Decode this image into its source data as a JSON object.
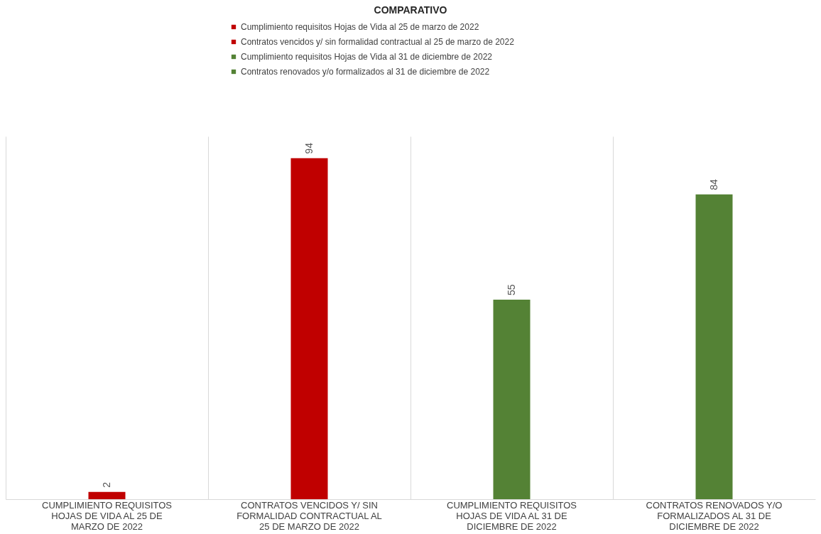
{
  "chart_data": {
    "type": "bar",
    "title": "COMPARATIVO",
    "categories": [
      "CUMPLIMIENTO REQUISITOS HOJAS DE VIDA AL 25 DE MARZO DE 2022",
      "CONTRATOS VENCIDOS Y/ SIN FORMALIDAD CONTRACTUAL AL 25 DE MARZO DE 2022",
      "CUMPLIMIENTO REQUISITOS HOJAS DE VIDA AL 31 DE DICIEMBRE DE 2022",
      "CONTRATOS RENOVADOS Y/O FORMALIZADOS AL 31 DE DICIEMBRE DE 2022"
    ],
    "series": [
      {
        "name": "Cumplimiento requisitos Hojas de Vida al 25 de marzo de 2022",
        "color": "#c00000",
        "values": [
          2,
          null,
          null,
          null
        ]
      },
      {
        "name": "Contratos vencidos y/ sin formalidad contractual al 25 de marzo de 2022",
        "color": "#c00000",
        "values": [
          null,
          94,
          null,
          null
        ]
      },
      {
        "name": "Cumplimiento requisitos Hojas de Vida al 31 de diciembre de 2022",
        "color": "#548235",
        "values": [
          null,
          null,
          55,
          null
        ]
      },
      {
        "name": "Contratos renovados y/o formalizados al 31 de diciembre de 2022",
        "color": "#548235",
        "values": [
          null,
          null,
          null,
          84
        ]
      }
    ],
    "data_labels": true,
    "grid": "x",
    "legend": "top"
  }
}
